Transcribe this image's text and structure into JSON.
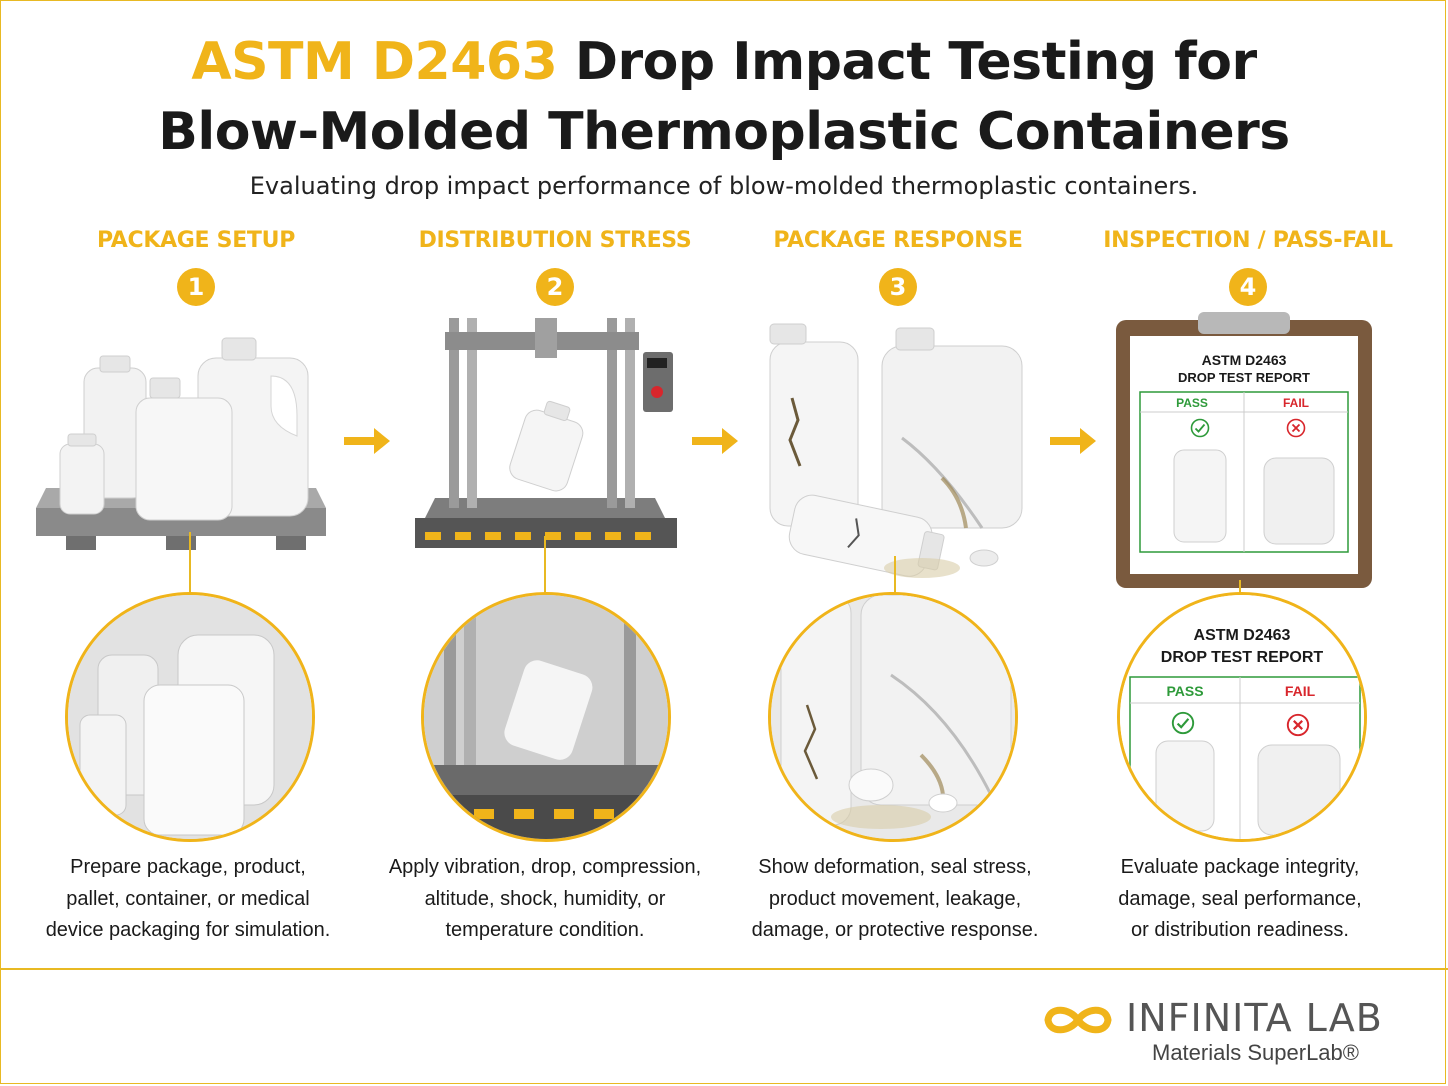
{
  "title": {
    "accent": "ASTM D2463",
    "line1_rest": " Drop Impact Testing for",
    "line2": "Blow-Molded Thermoplastic Containers"
  },
  "subtitle": "Evaluating drop impact performance of blow-molded thermoplastic containers.",
  "steps": [
    {
      "label": "PACKAGE SETUP",
      "number": "1",
      "description": [
        "Prepare package, product,",
        "pallet, container, or medical",
        "device packaging for simulation."
      ]
    },
    {
      "label": "DISTRIBUTION STRESS",
      "number": "2",
      "description": [
        "Apply vibration, drop, compression,",
        "altitude, shock, humidity, or",
        "temperature condition."
      ]
    },
    {
      "label": "PACKAGE RESPONSE",
      "number": "3",
      "description": [
        "Show deformation, seal stress,",
        "product movement, leakage,",
        "damage, or protective response."
      ]
    },
    {
      "label": "INSPECTION / PASS-FAIL",
      "number": "4",
      "description": [
        "Evaluate package integrity,",
        "damage, seal performance,",
        "or distribution readiness."
      ]
    }
  ],
  "report": {
    "title_line1": "ASTM D2463",
    "title_line2": "DROP TEST REPORT",
    "pass_label": "PASS",
    "fail_label": "FAIL"
  },
  "logo": {
    "name": "INFINITA LAB",
    "tagline": "Materials SuperLab®"
  },
  "colors": {
    "accent": "#f0b41a",
    "pass": "#2e9a3a",
    "fail": "#d8262c"
  },
  "icons": [
    "arrow-right-icon",
    "check-icon",
    "x-icon",
    "infinity-logo-icon"
  ]
}
